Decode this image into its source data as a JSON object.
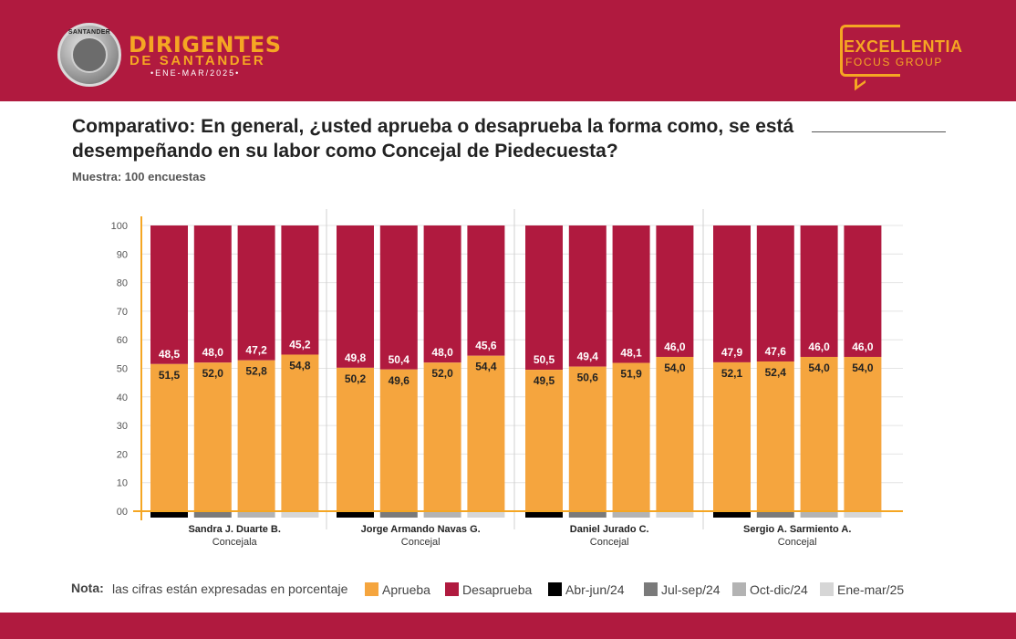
{
  "header": {
    "brand_title": "DIRIGENTES",
    "brand_subtitle": "DE SANTANDER",
    "brand_period": "•ENE-MAR/2025•",
    "seal_text": "SANTANDER",
    "partner_name": "EXCELLENTIA",
    "partner_tagline": "FOCUS GROUP"
  },
  "title": "Comparativo: En general, ¿usted aprueba o desaprueba la forma como, se está desempeñando en su labor como Concejal de Piedecuesta?",
  "sample": "Muestra: 100 encuestas",
  "note": {
    "label": "Nota:",
    "text": "las cifras están expresadas en porcentaje"
  },
  "colors": {
    "header_band": "#b01a3f",
    "aprueba": "#f5a53e",
    "desaprueba": "#b01a3f",
    "axis": "#f5a623",
    "abr_jun_24": "#000000",
    "jul_sep_24": "#7a7a7a",
    "oct_dic_24": "#b3b3b3",
    "ene_mar_25": "#d6d6d6"
  },
  "chart_data": {
    "type": "bar",
    "stacked": true,
    "ylim": [
      0,
      100
    ],
    "yticks": [
      "00",
      "10",
      "20",
      "30",
      "40",
      "50",
      "60",
      "70",
      "80",
      "90",
      "100"
    ],
    "periods": [
      "Abr-jun/24",
      "Jul-sep/24",
      "Oct-dic/24",
      "Ene-mar/25"
    ],
    "series_names": [
      "Aprueba",
      "Desaprueba"
    ],
    "groups": [
      {
        "name": "Sandra J. Duarte B.",
        "role": "Concejala",
        "aprueba": [
          51.5,
          52.0,
          52.8,
          54.8
        ],
        "desaprueba": [
          48.5,
          48.0,
          47.2,
          45.2
        ],
        "aprueba_labels": [
          "51,5",
          "52,0",
          "52,8",
          "54,8"
        ],
        "desaprueba_labels": [
          "48,5",
          "48,0",
          "47,2",
          "45,2"
        ]
      },
      {
        "name": "Jorge Armando Navas G.",
        "role": "Concejal",
        "aprueba": [
          50.2,
          49.6,
          52.0,
          54.4
        ],
        "desaprueba": [
          49.8,
          50.4,
          48.0,
          45.6
        ],
        "aprueba_labels": [
          "50,2",
          "49,6",
          "52,0",
          "54,4"
        ],
        "desaprueba_labels": [
          "49,8",
          "50,4",
          "48,0",
          "45,6"
        ]
      },
      {
        "name": "Daniel Jurado C.",
        "role": "Concejal",
        "aprueba": [
          49.5,
          50.6,
          51.9,
          54.0
        ],
        "desaprueba": [
          50.5,
          49.4,
          48.1,
          46.0
        ],
        "aprueba_labels": [
          "49,5",
          "50,6",
          "51,9",
          "54,0"
        ],
        "desaprueba_labels": [
          "50,5",
          "49,4",
          "48,1",
          "46,0"
        ]
      },
      {
        "name": "Sergio A. Sarmiento A.",
        "role": "Concejal",
        "aprueba": [
          52.1,
          52.4,
          54.0,
          54.0
        ],
        "desaprueba": [
          47.9,
          47.6,
          46.0,
          46.0
        ],
        "aprueba_labels": [
          "52,1",
          "52,4",
          "54,0",
          "54,0"
        ],
        "desaprueba_labels": [
          "47,9",
          "47,6",
          "46,0",
          "46,0"
        ]
      }
    ],
    "grid": true,
    "legend_position": "bottom"
  }
}
